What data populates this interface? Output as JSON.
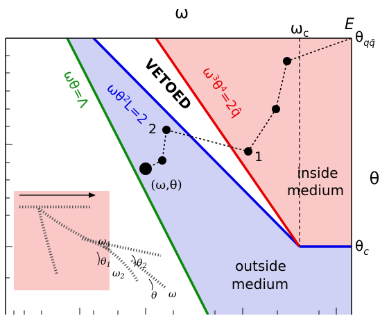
{
  "axes": {
    "top": "ω",
    "right": "θ"
  },
  "top_marks": {
    "omega_c": "ωc",
    "E": "E"
  },
  "right_marks": {
    "theta_qq": "θqq̄",
    "theta_c": "θc"
  },
  "lines": {
    "green": "ωθ=Λ",
    "blue": "ωθ²L=2",
    "red": "ω³θ⁴=2q̂",
    "vetoed": "VETOED"
  },
  "regions": {
    "inside": [
      "inside",
      "medium"
    ],
    "outside": [
      "outside",
      "medium"
    ]
  },
  "points": {
    "label1": "1",
    "label2": "2",
    "omega_theta": "(ω,θ)"
  },
  "inset": {
    "omega": "ω",
    "omega1": "ω1",
    "omega2": "ω2",
    "theta": "θ",
    "theta1": "θ1",
    "theta2": "θ2"
  },
  "colors": {
    "inside_fill": "#fbc8c8",
    "outside_fill": "#cfd2f4",
    "green": "#0a8a0a",
    "blue": "#0000e6",
    "red": "#e60000"
  }
}
